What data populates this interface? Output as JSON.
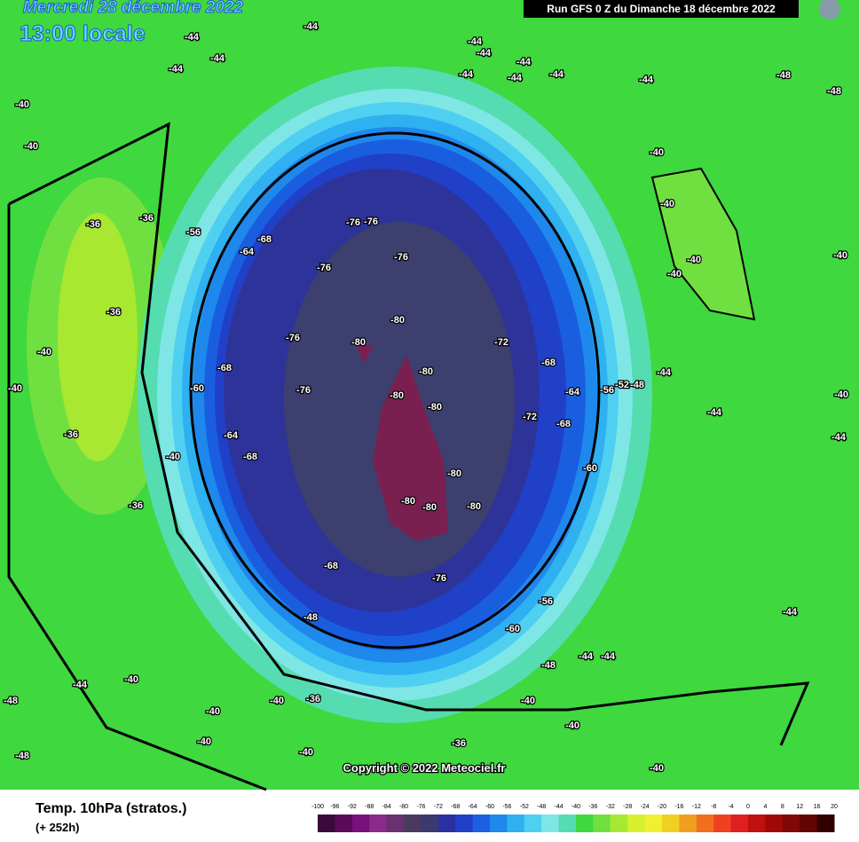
{
  "header": {
    "date": "Mercredi 28 décembre 2022",
    "time": "13:00 locale",
    "run": "Run GFS 0 Z du Dimanche 18 décembre 2022"
  },
  "copyright": "Copyright © 2022 Meteociel.fr",
  "footer": {
    "title": "Temp. 10hPa (stratos.)",
    "lead": "(+ 252h)"
  },
  "scale": {
    "ticks": [
      -100,
      -96,
      -92,
      -88,
      -84,
      -80,
      -76,
      -72,
      -68,
      -64,
      -60,
      -56,
      -52,
      -48,
      -44,
      -40,
      -36,
      -32,
      -28,
      -24,
      -20,
      -16,
      -12,
      -8,
      -4,
      0,
      4,
      8,
      12,
      16,
      20
    ],
    "colors": [
      "#3a0a3a",
      "#5a0a5a",
      "#7a107a",
      "#8a2a8a",
      "#6a3070",
      "#4a3a60",
      "#3a3a70",
      "#2a30a0",
      "#2040c8",
      "#1a60e0",
      "#1e88ec",
      "#2fb0f0",
      "#4fd0f0",
      "#7fe6e6",
      "#55dcb0",
      "#3fd83f",
      "#70e040",
      "#a8e830",
      "#d8f030",
      "#f0f030",
      "#f0d020",
      "#f0a020",
      "#f07020",
      "#f04020",
      "#e02020",
      "#c01010",
      "#a00808",
      "#800808",
      "#600404",
      "#300000"
    ]
  },
  "map": {
    "labels": [
      -44,
      -44,
      -44,
      -44,
      -44,
      -44,
      -44,
      -44,
      -44,
      -44,
      -44,
      -40,
      -40,
      -40,
      -40,
      -36,
      -36,
      -36,
      -36,
      -36,
      -40,
      -56,
      -68,
      -64,
      -76,
      -76,
      -76,
      -76,
      -80,
      -80,
      -80,
      -80,
      -80,
      -76,
      -76,
      -68,
      -60,
      -64,
      -68,
      -72,
      -68,
      -64,
      -72,
      -68,
      -80,
      -80,
      -80,
      -80,
      -76,
      -68,
      -60,
      -56,
      -48,
      -60,
      -56,
      -52,
      -48,
      -44,
      -40,
      -40,
      -40,
      -40,
      -44,
      -44,
      -44,
      -44,
      -48,
      -40,
      -36,
      -40,
      -36,
      -40,
      -40,
      -44,
      -48,
      -48,
      -44,
      -40,
      -40,
      -40,
      -40,
      -48,
      -48,
      -40,
      -40
    ]
  }
}
